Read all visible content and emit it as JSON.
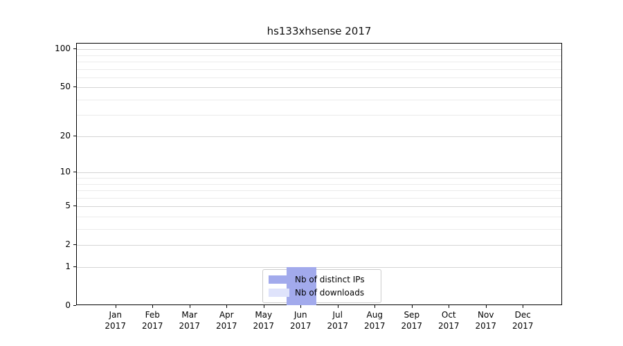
{
  "chart_data": {
    "type": "bar",
    "title": "hs133xhsense 2017",
    "categories": [
      "Jan",
      "Feb",
      "Mar",
      "Apr",
      "May",
      "Jun",
      "Jul",
      "Aug",
      "Sep",
      "Oct",
      "Nov",
      "Dec"
    ],
    "category_sublabel": "2017",
    "series": [
      {
        "name": "Nb of distinct IPs",
        "color": "#a2aaec",
        "values": [
          0,
          0,
          0,
          0,
          0,
          1,
          0,
          0,
          0,
          0,
          0,
          0
        ]
      },
      {
        "name": "Nb of downloads",
        "color": "#dfe3fb",
        "values": [
          0,
          0,
          0,
          0,
          0,
          1,
          0,
          0,
          0,
          0,
          0,
          0
        ]
      }
    ],
    "yscale": "log1p",
    "ylim": [
      0,
      111
    ],
    "yticks_major": [
      0,
      1,
      2,
      5,
      10,
      20,
      50,
      100
    ],
    "yticks_minor": [
      3,
      4,
      6,
      7,
      8,
      9,
      30,
      40,
      60,
      70,
      80,
      90
    ],
    "grid": "horizontal",
    "legend_position": "lower-center",
    "xlabel": "",
    "ylabel": ""
  },
  "colors": {
    "grid_major": "#d4d4d4",
    "grid_minor": "#ebebeb",
    "axis": "#000000",
    "legend_border": "#cccccc",
    "background": "#ffffff",
    "text": "#000000"
  }
}
